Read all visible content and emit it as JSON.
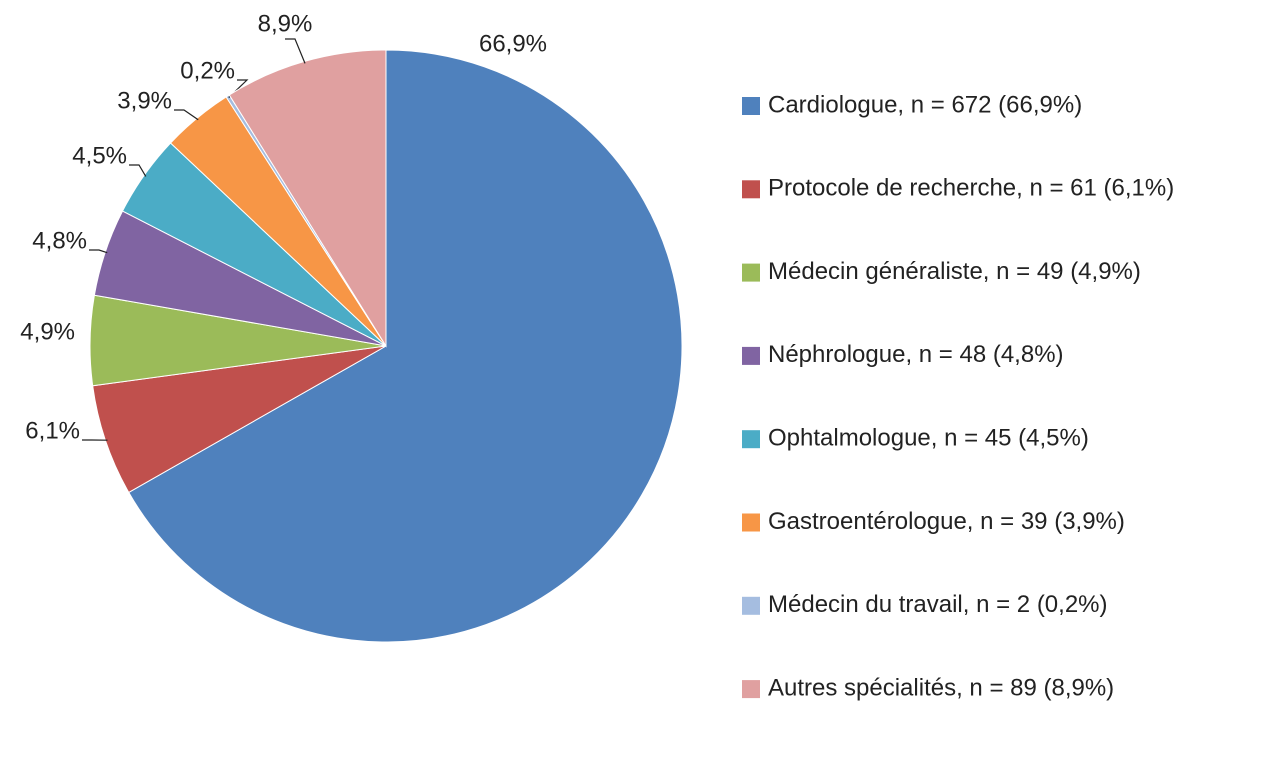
{
  "chart_data": {
    "type": "pie",
    "categories": [
      "Cardiologue, n = 672 (66,9%)",
      "Protocole de recherche, n = 61 (6,1%)",
      "Médecin généraliste, n = 49 (4,9%)",
      "Néphrologue, n = 48 (4,8%)",
      "Ophtalmologue, n = 45 (4,5%)",
      "Gastroentérologue, n = 39 (3,9%)",
      "Médecin du travail, n = 2 (0,2%)",
      "Autres spécialités, n = 89 (8,9%)"
    ],
    "values": [
      66.9,
      6.1,
      4.9,
      4.8,
      4.5,
      3.9,
      0.2,
      8.9
    ],
    "value_labels": [
      "66,9%",
      "6,1%",
      "4,9%",
      "4,8%",
      "4,5%",
      "3,9%",
      "0,2%",
      "8,9%"
    ],
    "colors": [
      "#4f81bd",
      "#c0504d",
      "#9bbb59",
      "#8064a2",
      "#4bacc6",
      "#f79646",
      "#a5bde0",
      "#e0a0a0"
    ],
    "legend": "right"
  }
}
